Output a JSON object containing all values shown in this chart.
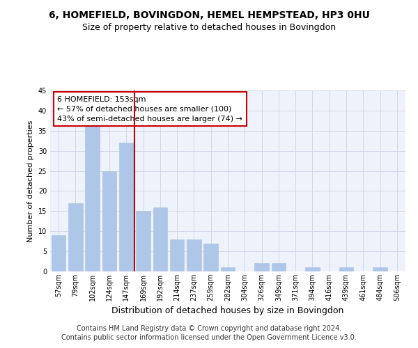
{
  "title": "6, HOMEFIELD, BOVINGDON, HEMEL HEMPSTEAD, HP3 0HU",
  "subtitle": "Size of property relative to detached houses in Bovingdon",
  "xlabel": "Distribution of detached houses by size in Bovingdon",
  "ylabel": "Number of detached properties",
  "categories": [
    "57sqm",
    "79sqm",
    "102sqm",
    "124sqm",
    "147sqm",
    "169sqm",
    "192sqm",
    "214sqm",
    "237sqm",
    "259sqm",
    "282sqm",
    "304sqm",
    "326sqm",
    "349sqm",
    "371sqm",
    "394sqm",
    "416sqm",
    "439sqm",
    "461sqm",
    "484sqm",
    "506sqm"
  ],
  "values": [
    9,
    17,
    37,
    25,
    32,
    15,
    16,
    8,
    8,
    7,
    1,
    0,
    2,
    2,
    0,
    1,
    0,
    1,
    0,
    1,
    0
  ],
  "bar_color": "#aec6e8",
  "bar_edgecolor": "#aec6e8",
  "vline_color": "#cc0000",
  "vline_pos": 4.5,
  "annotation_text": "6 HOMEFIELD: 153sqm\n← 57% of detached houses are smaller (100)\n43% of semi-detached houses are larger (74) →",
  "annotation_box_edgecolor": "#cc0000",
  "annotation_box_facecolor": "#ffffff",
  "ylim": [
    0,
    45
  ],
  "yticks": [
    0,
    5,
    10,
    15,
    20,
    25,
    30,
    35,
    40,
    45
  ],
  "grid_color": "#d0d8e8",
  "bg_color": "#eef2fa",
  "footer": "Contains HM Land Registry data © Crown copyright and database right 2024.\nContains public sector information licensed under the Open Government Licence v3.0.",
  "title_fontsize": 10,
  "subtitle_fontsize": 9,
  "xlabel_fontsize": 9,
  "ylabel_fontsize": 8,
  "annotation_fontsize": 8,
  "footer_fontsize": 7,
  "tick_fontsize": 7
}
